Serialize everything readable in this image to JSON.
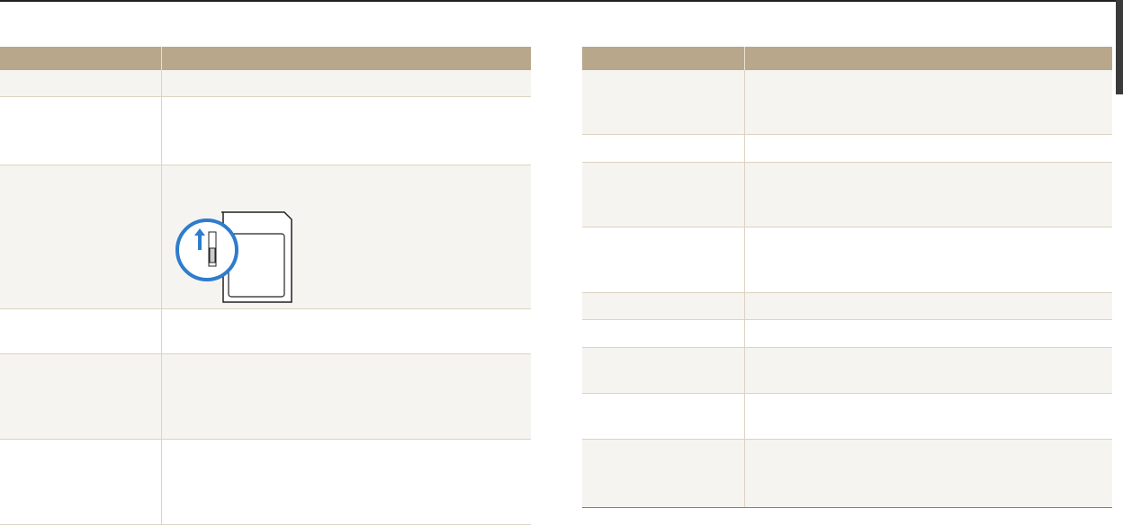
{
  "colors": {
    "header": "#b8a78b",
    "row_shade": "#f6f4f0",
    "divider": "#ddd3c1",
    "accent_blue": "#2e7ccc"
  },
  "left_table": {
    "columns": 2,
    "rows": [
      {
        "shaded": true
      },
      {
        "shaded": false
      },
      {
        "shaded": true,
        "illustration": "sd-card-lock-switch"
      },
      {
        "shaded": false
      },
      {
        "shaded": true
      },
      {
        "shaded": false
      }
    ]
  },
  "right_table": {
    "columns": 2,
    "rows": [
      {
        "shaded": true
      },
      {
        "shaded": false
      },
      {
        "shaded": true
      },
      {
        "shaded": false
      },
      {
        "shaded": true
      },
      {
        "shaded": false
      },
      {
        "shaded": true
      },
      {
        "shaded": false
      },
      {
        "shaded": true
      }
    ]
  }
}
